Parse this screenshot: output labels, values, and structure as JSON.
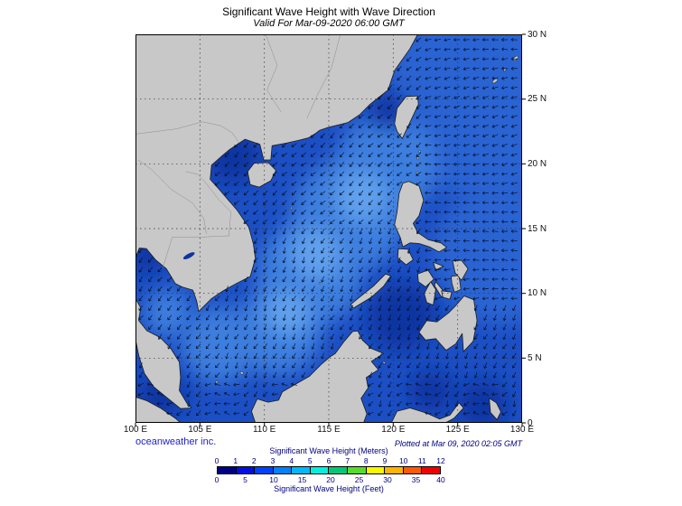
{
  "header": {
    "title": "Significant Wave Height with Wave Direction",
    "subtitle": "Valid For Mar-09-2020 06:00 GMT"
  },
  "footer": {
    "credit": "oceanweather inc.",
    "plotted": "Plotted at Mar 09, 2020 02:05 GMT"
  },
  "axes": {
    "lon_labels": [
      "100 E",
      "105 E",
      "110 E",
      "115 E",
      "120 E",
      "125 E",
      "130 E"
    ],
    "lat_labels": [
      "30 N",
      "25 N",
      "20 N",
      "15 N",
      "10 N",
      "5 N",
      "0"
    ]
  },
  "legend": {
    "meters_title": "Significant Wave Height (Meters)",
    "feet_title": "Significant Wave Height (Feet)",
    "meters_ticks": [
      "0",
      "1",
      "2",
      "3",
      "4",
      "5",
      "6",
      "7",
      "8",
      "9",
      "10",
      "11",
      "12"
    ],
    "feet_ticks": [
      "0",
      "5",
      "10",
      "15",
      "20",
      "25",
      "30",
      "35",
      "40"
    ],
    "colors": [
      "#000082",
      "#0010e0",
      "#0040ff",
      "#0080ff",
      "#00b8ff",
      "#00f0e0",
      "#00c878",
      "#58dc28",
      "#f8f800",
      "#ffb400",
      "#ff5a00",
      "#ee0000"
    ]
  },
  "map": {
    "land_color": "#c8c8c8",
    "coast_color": "#1a1a1a",
    "border_color": "#8c8c8c",
    "grid_color": "#303030",
    "arrow_color": "#001028",
    "ocean_base": "#1c4fc4",
    "ocean_calm": "#0c34a2",
    "ocean_moderate": "#3c7ede",
    "ocean_high": "#60a0ec",
    "ocean_pacific": "#2a63d2"
  }
}
